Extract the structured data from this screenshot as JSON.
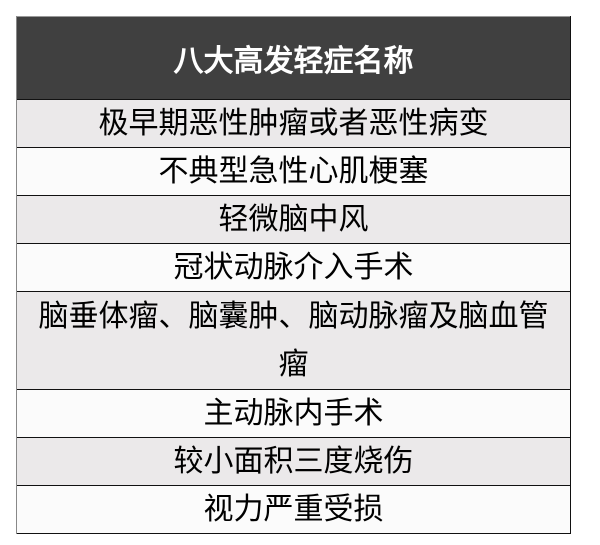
{
  "table": {
    "header": "八大高发轻症名称",
    "rows": [
      "极早期恶性肿瘤或者恶性病变",
      "不典型急性心肌梗塞",
      "轻微脑中风",
      "冠状动脉介入手术",
      "脑垂体瘤、脑囊肿、脑动脉瘤及脑血管瘤",
      "主动脉内手术",
      "较小面积三度烧伤",
      "视力严重受损"
    ]
  },
  "colors": {
    "header_bg": "#404040",
    "row_alt": "#ebe9ea"
  }
}
